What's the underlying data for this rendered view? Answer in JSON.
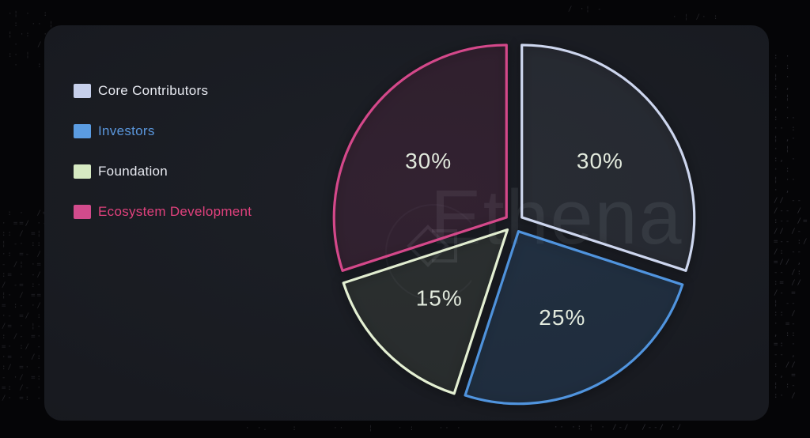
{
  "watermark": {
    "text": "Ethena"
  },
  "legend": {
    "items": [
      {
        "label": "Core Contributors",
        "swatch_color": "#c6cfeb",
        "label_color": "#e8eaf1"
      },
      {
        "label": "Investors",
        "swatch_color": "#5b9ce2",
        "label_color": "#5a96dc"
      },
      {
        "label": "Foundation",
        "swatch_color": "#d6e9c2",
        "label_color": "#e8eaf1"
      },
      {
        "label": "Ecosystem Development",
        "swatch_color": "#d24b8c",
        "label_color": "#e1417d"
      }
    ]
  },
  "chart_data": {
    "type": "pie",
    "title": "",
    "categories": [
      "Core Contributors",
      "Investors",
      "Foundation",
      "Ecosystem Development"
    ],
    "values": [
      30,
      25,
      15,
      30
    ],
    "labels": [
      "30%",
      "25%",
      "15%",
      "30%"
    ],
    "slice_strokes": [
      "#cdd6ee",
      "#5094de",
      "#e4f0d3",
      "#d4488a"
    ],
    "slice_fills": [
      "rgba(205,214,238,0.08)",
      "rgba(80,148,222,0.17)",
      "rgba(208,235,180,0.09)",
      "rgba(212,72,140,0.13)"
    ],
    "label_color": "#e2eadd",
    "start_angle_deg": 0,
    "direction": "clockwise",
    "exploded": true,
    "legend_position": "left"
  },
  "decor": {
    "tl": "·¦ ·  :\n :  ·· ¦\n¦ ·:  ·\n ·   / :\n:· ¦   ·\n ·   :",
    "tc": "/ ·¦ -",
    "tr": "· ¦ /· :",
    "left": " : ·  /=\n· ==/ ·-\n:: / =¦\n¦ -· ::\n·: =- /\n- /¦ ·=\n:= · -/\n/ -= :·\n¦· / ==\n= :- ·/\n·- =/ :\n/= · ¦-\n: /- =·\n=· :/ -\n·= - /:\n:/ =· -\n- ·/ =:\n=: /- ·\n/· =: -",
    "right": ": ·\n· :\n¦ ·\n: ,\n· ¦\n, ·\n: ··\n·· :\n¦ ,·\n· ¦\n:, ·\n· :\n¦ ··\n· ,\n// --\n/-- /\n:-- /=\n// /-\n=-- :/\n/: --\n=// ,\n-- /:\n:= //\n/- =\n¦ --\n:: /\n· =-\n, ::\n=: ·\n-- ,\n: //\n·, =\n¦ :-\n:· /",
    "bottom": "· ·.    :      ··    ¦    · :    ·· ·",
    "br": "·· ·: ¦ · /-/  /--/ ·/"
  }
}
